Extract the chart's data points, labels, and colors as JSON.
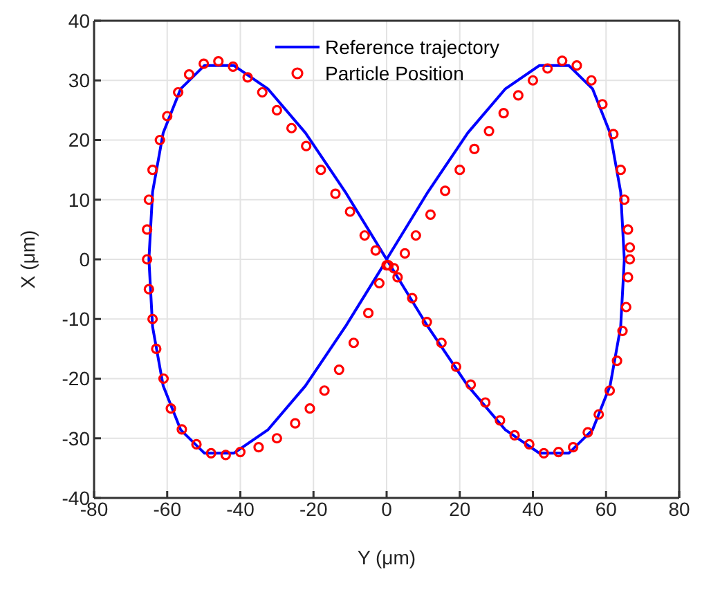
{
  "chart_data": {
    "type": "line",
    "xlabel": "Y (μm)",
    "ylabel": "X (μm)",
    "xlim": [
      -80,
      80
    ],
    "xticks": [
      -80,
      -60,
      -40,
      -20,
      0,
      20,
      40,
      60,
      80
    ],
    "ylim": [
      -40,
      40
    ],
    "yticks": [
      -40,
      -30,
      -20,
      -10,
      0,
      10,
      20,
      30,
      40
    ],
    "grid": true,
    "legend": "top",
    "series": [
      {
        "name": "Reference trajectory",
        "color": "#0000ff",
        "marker": "none",
        "line_style": "solid",
        "x": [
          0,
          11.3,
          22.2,
          32.5,
          41.8,
          49.8,
          56.3,
          61.1,
          64.0,
          65,
          64.0,
          61.1,
          56.3,
          49.8,
          41.8,
          32.5,
          22.2,
          11.3,
          0,
          -11.3,
          -22.2,
          -32.5,
          -41.8,
          -49.8,
          -56.3,
          -61.1,
          -64.0,
          -65,
          -64.0,
          -61.1,
          -56.3,
          -49.8,
          -41.8,
          -32.5,
          -22.2,
          -11.3,
          -1.1
        ],
        "values": [
          0,
          11.3,
          21.2,
          28.6,
          32.5,
          32.5,
          28.6,
          21.2,
          11.3,
          0,
          -11.3,
          -21.2,
          -28.6,
          -32.5,
          -32.5,
          -28.6,
          -21.2,
          -11.3,
          0,
          11.3,
          21.2,
          28.6,
          32.5,
          32.5,
          28.6,
          21.2,
          11.3,
          0,
          -11.3,
          -21.2,
          -28.6,
          -32.5,
          -32.5,
          -28.6,
          -21.2,
          -11.3,
          -1.2
        ]
      },
      {
        "name": "Particle Position",
        "type": "scatter",
        "color": "#ff0000",
        "marker": "circle",
        "x": [
          44,
          48,
          52,
          56,
          59,
          62,
          64,
          65,
          66,
          66.5,
          66.5,
          66,
          65.5,
          64.5,
          63,
          61,
          58,
          55,
          51,
          47,
          43,
          39,
          35,
          31,
          27,
          23,
          19,
          15,
          11,
          7,
          3,
          0.5,
          -2,
          -5,
          -9,
          -13,
          -17,
          -21,
          -25,
          -30,
          -35,
          -40,
          -44,
          -48,
          -52,
          -56,
          -59,
          -61,
          -63,
          -64,
          -65,
          -65.5,
          -65.5,
          -65,
          -64,
          -62,
          -60,
          -57,
          -54,
          -50,
          -46,
          -42,
          -38,
          -34,
          -30,
          -26,
          -22,
          -18,
          -14,
          -10,
          -6,
          -3,
          0,
          2,
          5,
          8,
          12,
          16,
          20,
          24,
          28,
          32,
          36,
          40
        ],
        "values": [
          32,
          33.3,
          32.5,
          30,
          26,
          21,
          15,
          10,
          5,
          2,
          0,
          -3,
          -8,
          -12,
          -17,
          -22,
          -26,
          -29,
          -31.5,
          -32.3,
          -32.5,
          -31,
          -29.5,
          -27,
          -24,
          -21,
          -18,
          -14,
          -10.5,
          -6.5,
          -3,
          -1,
          -4,
          -9,
          -14,
          -18.5,
          -22,
          -25,
          -27.5,
          -30,
          -31.5,
          -32.3,
          -32.8,
          -32.5,
          -31,
          -28.5,
          -25,
          -20,
          -15,
          -10,
          -5,
          0,
          5,
          10,
          15,
          20,
          24,
          28,
          31,
          32.8,
          33.2,
          32.3,
          30.5,
          28,
          25,
          22,
          19,
          15,
          11,
          8,
          4,
          1.5,
          -1,
          -1.5,
          1,
          4,
          7.5,
          11.5,
          15,
          18.5,
          21.5,
          24.5,
          27.5,
          30
        ]
      }
    ]
  }
}
